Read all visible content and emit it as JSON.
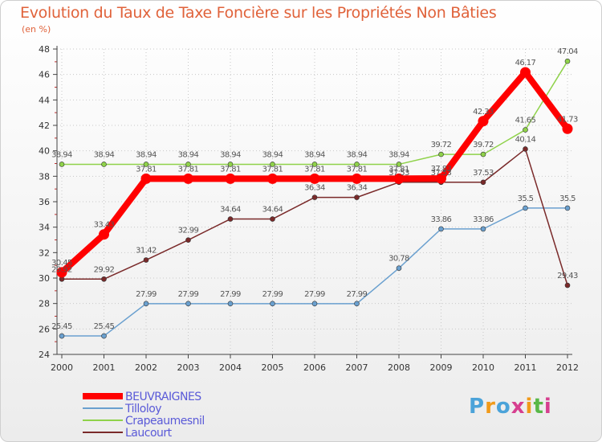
{
  "header": {
    "title": "Evolution du Taux de Taxe Foncière sur les Propriétés Non Bâties",
    "unit": "(en %)"
  },
  "logo": {
    "text": "Proxiti",
    "colors": [
      "#4ba3d9",
      "#f19a1a",
      "#4ba3d9",
      "#d63f8f",
      "#f19a1a",
      "#58b848",
      "#d63f8f"
    ]
  },
  "chart_data": {
    "type": "line",
    "title": "Evolution du Taux de Taxe Foncière sur les Propriétés Non Bâties",
    "ylabel": "(en %)",
    "xlabel": "",
    "ylim": [
      24,
      48
    ],
    "yticks": [
      24,
      26,
      28,
      30,
      32,
      34,
      36,
      38,
      40,
      42,
      44,
      46,
      48
    ],
    "categories": [
      "2000",
      "2001",
      "2002",
      "2003",
      "2004",
      "2005",
      "2006",
      "2007",
      "2008",
      "2009",
      "2010",
      "2011",
      "2012"
    ],
    "legend_position": "bottom-left",
    "series": [
      {
        "name": "BEUVRAIGNES",
        "color": "#ff0000",
        "values": [
          30.45,
          33.43,
          37.81,
          37.81,
          37.81,
          37.81,
          37.81,
          37.81,
          37.81,
          37.83,
          42.33,
          46.17,
          41.73
        ],
        "labels": [
          "30.45",
          "33.43",
          "37.81",
          "37.81",
          "37.81",
          "37.81",
          "37.81",
          "37.81",
          "37.81",
          "37.83",
          "42.33",
          "46.17",
          "41.73"
        ]
      },
      {
        "name": "Tilloloy",
        "color": "#6aa0cf",
        "values": [
          25.45,
          25.45,
          27.99,
          27.99,
          27.99,
          27.99,
          27.99,
          27.99,
          30.78,
          33.86,
          33.86,
          35.5,
          35.5
        ],
        "labels": [
          "25.45",
          "25.45",
          "27.99",
          "27.99",
          "27.99",
          "27.99",
          "27.99",
          "27.99",
          "30.78",
          "33.86",
          "33.86",
          "35.5",
          "35.5"
        ]
      },
      {
        "name": "Crapeaumesnil",
        "color": "#8fd24a",
        "values": [
          38.94,
          38.94,
          38.94,
          38.94,
          38.94,
          38.94,
          38.94,
          38.94,
          38.94,
          39.72,
          39.72,
          41.65,
          47.04
        ],
        "labels": [
          "38.94",
          "38.94",
          "38.94",
          "38.94",
          "38.94",
          "38.94",
          "38.94",
          "38.94",
          "38.94",
          "39.72",
          "39.72",
          "41.65",
          "47.04"
        ]
      },
      {
        "name": "Laucourt",
        "color": "#7a2a2a",
        "values": [
          29.92,
          29.92,
          31.42,
          32.99,
          34.64,
          34.64,
          36.34,
          36.34,
          37.53,
          37.53,
          37.53,
          40.14,
          29.43
        ],
        "labels": [
          "29.92",
          "29.92",
          "31.42",
          "32.99",
          "34.64",
          "34.64",
          "36.34",
          "36.34",
          "37.53",
          "37.53",
          "37.53",
          "40.14",
          "29.43"
        ]
      }
    ]
  }
}
